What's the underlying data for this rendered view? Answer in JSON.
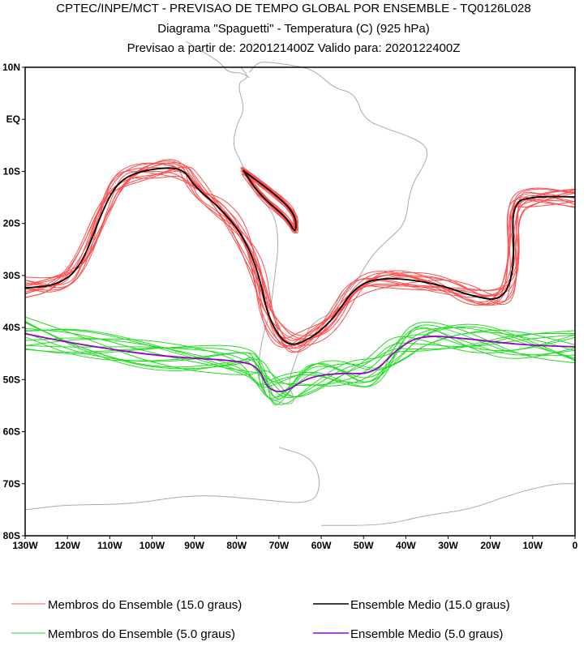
{
  "titles": {
    "line1": "CPTEC/INPE/MCT - PREVISAO DE TEMPO GLOBAL POR ENSEMBLE - TQ0126L028",
    "line2": "Diagrama \"Spaguetti\" - Temperatura (C) (925 hPa)",
    "line3": "Previsao a partir de: 2020121400Z  Valido para: 2020122400Z"
  },
  "chart_data": {
    "type": "line",
    "projection": "lat-lon",
    "lon_range": [
      -130,
      0
    ],
    "lat_range": [
      -80,
      10
    ],
    "y_ticks": [
      {
        "v": 10,
        "label": "10N"
      },
      {
        "v": 0,
        "label": "EQ"
      },
      {
        "v": -10,
        "label": "10S"
      },
      {
        "v": -20,
        "label": "20S"
      },
      {
        "v": -30,
        "label": "30S"
      },
      {
        "v": -40,
        "label": "40S"
      },
      {
        "v": -50,
        "label": "50S"
      },
      {
        "v": -60,
        "label": "60S"
      },
      {
        "v": -70,
        "label": "70S"
      },
      {
        "v": -80,
        "label": "80S"
      }
    ],
    "x_ticks": [
      {
        "v": -130,
        "label": "130W"
      },
      {
        "v": -120,
        "label": "120W"
      },
      {
        "v": -110,
        "label": "110W"
      },
      {
        "v": -100,
        "label": "100W"
      },
      {
        "v": -90,
        "label": "90W"
      },
      {
        "v": -80,
        "label": "80W"
      },
      {
        "v": -70,
        "label": "70W"
      },
      {
        "v": -60,
        "label": "60W"
      },
      {
        "v": -50,
        "label": "50W"
      },
      {
        "v": -40,
        "label": "40W"
      },
      {
        "v": -30,
        "label": "30W"
      },
      {
        "v": -20,
        "label": "20W"
      },
      {
        "v": -10,
        "label": "10W"
      },
      {
        "v": 0,
        "label": "0"
      }
    ],
    "series": [
      {
        "name": "Ensemble Medio (15.0 graus)",
        "color": "#000000",
        "points": [
          [
            -130,
            -32.4
          ],
          [
            -122.5,
            -31.9
          ],
          [
            -116.8,
            -28.5
          ],
          [
            -111,
            -16
          ],
          [
            -107.2,
            -11.3
          ],
          [
            -100.5,
            -9.5
          ],
          [
            -92.8,
            -9.2
          ],
          [
            -90,
            -12.9
          ],
          [
            -84.2,
            -16.8
          ],
          [
            -78.5,
            -22.2
          ],
          [
            -74.6,
            -30
          ],
          [
            -72.7,
            -37.8
          ],
          [
            -68.4,
            -43.7
          ],
          [
            -63.1,
            -42.5
          ],
          [
            -57.3,
            -38.6
          ],
          [
            -51.6,
            -31.6
          ],
          [
            -43.9,
            -30.3
          ],
          [
            -32.4,
            -31.6
          ],
          [
            -24.7,
            -33.9
          ],
          [
            -17.1,
            -35
          ],
          [
            -14.2,
            -28.5
          ],
          [
            -15.1,
            -16
          ],
          [
            -9.4,
            -14.8
          ],
          [
            0,
            -14.9
          ]
        ],
        "closed_contours": [
          [
            [
              -78.5,
              -9.8
            ],
            [
              -70.7,
              -14.5
            ],
            [
              -66,
              -18.3
            ],
            [
              -66,
              -22.2
            ],
            [
              -67.9,
              -19.1
            ],
            [
              -74.6,
              -14.5
            ],
            [
              -78.1,
              -10.2
            ]
          ]
        ]
      },
      {
        "name": "Ensemble Medio (5.0 graus)",
        "color": "#9900cc",
        "points": [
          [
            -130,
            -41.2
          ],
          [
            -116.8,
            -43.3
          ],
          [
            -97.6,
            -45.6
          ],
          [
            -78.4,
            -46.4
          ],
          [
            -74.6,
            -47.9
          ],
          [
            -72.7,
            -51.8
          ],
          [
            -68.8,
            -52.6
          ],
          [
            -63.1,
            -49.5
          ],
          [
            -55.4,
            -48.7
          ],
          [
            -47.7,
            -49
          ],
          [
            -42,
            -44
          ],
          [
            -36.2,
            -41.4
          ],
          [
            -24.7,
            -42.2
          ],
          [
            -13.2,
            -43.3
          ],
          [
            0,
            -43.7
          ]
        ]
      }
    ],
    "members_15_color": "#ff4d4d",
    "members_5_color": "#22dd22",
    "coast_color": "#aaaaaa"
  },
  "legend": {
    "members15": "Membros do Ensemble (15.0 graus)",
    "mean15": "Ensemble Medio (15.0 graus)",
    "members5": "Membros do Ensemble (5.0 graus)",
    "mean5": "Ensemble Medio (5.0 graus)"
  }
}
